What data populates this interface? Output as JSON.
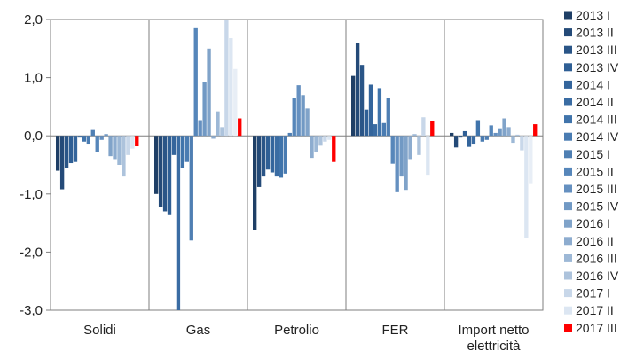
{
  "chart_data": {
    "type": "bar",
    "title": "",
    "xlabel": "",
    "ylabel": "",
    "ylim": [
      -3.0,
      2.0
    ],
    "yticks": [
      -3.0,
      -2.0,
      -1.0,
      0.0,
      1.0,
      2.0
    ],
    "ytick_labels": [
      "-3,0",
      "-2,0",
      "-1,0",
      "0,0",
      "1,0",
      "2,0"
    ],
    "grid": false,
    "legend_position": "right",
    "categories": [
      "Solidi",
      "Gas",
      "Petrolio",
      "FER",
      "Import netto elettricità"
    ],
    "category_label_lines": [
      [
        "Solidi"
      ],
      [
        "Gas"
      ],
      [
        "Petrolio"
      ],
      [
        "FER"
      ],
      [
        "Import netto",
        "elettricità"
      ]
    ],
    "series": [
      {
        "name": "2013 I",
        "color": "#1f3f66",
        "values": [
          -0.6,
          -1.0,
          -1.62,
          1.03,
          0.05
        ]
      },
      {
        "name": "2013 II",
        "color": "#244a78",
        "values": [
          -0.92,
          -1.22,
          -0.88,
          1.6,
          -0.2
        ]
      },
      {
        "name": "2013 III",
        "color": "#2a5587",
        "values": [
          -0.55,
          -1.3,
          -0.7,
          1.22,
          -0.03
        ]
      },
      {
        "name": "2013 IV",
        "color": "#2f5f95",
        "values": [
          -0.47,
          -1.35,
          -0.58,
          0.45,
          0.08
        ]
      },
      {
        "name": "2014 I",
        "color": "#34659c",
        "values": [
          -0.45,
          -0.33,
          -0.63,
          0.88,
          -0.19
        ]
      },
      {
        "name": "2014 II",
        "color": "#3a6ca3",
        "values": [
          -0.03,
          -3.0,
          -0.7,
          0.2,
          -0.15
        ]
      },
      {
        "name": "2014 III",
        "color": "#4074ab",
        "values": [
          -0.1,
          -0.55,
          -0.72,
          0.82,
          0.27
        ]
      },
      {
        "name": "2014 IV",
        "color": "#4a7cb2",
        "values": [
          -0.15,
          -0.45,
          -0.65,
          0.22,
          -0.1
        ]
      },
      {
        "name": "2015 I",
        "color": "#4f7fb3",
        "values": [
          0.1,
          -1.8,
          0.05,
          0.65,
          -0.07
        ]
      },
      {
        "name": "2015 II",
        "color": "#5686ba",
        "values": [
          -0.28,
          1.85,
          0.65,
          -0.48,
          0.18
        ]
      },
      {
        "name": "2015 III",
        "color": "#6590c0",
        "values": [
          -0.07,
          0.27,
          0.87,
          -0.97,
          0.05
        ]
      },
      {
        "name": "2015 IV",
        "color": "#7199c4",
        "values": [
          0.03,
          0.93,
          0.7,
          -0.7,
          0.13
        ]
      },
      {
        "name": "2016 I",
        "color": "#80a3c9",
        "values": [
          -0.35,
          1.5,
          0.47,
          -0.93,
          0.3
        ]
      },
      {
        "name": "2016 II",
        "color": "#8daccf",
        "values": [
          -0.4,
          -0.05,
          -0.38,
          -0.4,
          0.15
        ]
      },
      {
        "name": "2016 III",
        "color": "#9db8d6",
        "values": [
          -0.5,
          0.42,
          -0.28,
          0.03,
          -0.12
        ]
      },
      {
        "name": "2016 IV",
        "color": "#adc3dc",
        "values": [
          -0.7,
          0.15,
          -0.17,
          -0.33,
          0.02
        ]
      },
      {
        "name": "2017 I",
        "color": "#c8d7e9",
        "values": [
          -0.33,
          2.0,
          -0.1,
          0.32,
          -0.25
        ]
      },
      {
        "name": "2017 II",
        "color": "#dce6f2",
        "values": [
          -0.22,
          1.68,
          -0.07,
          -0.67,
          -1.75
        ]
      },
      {
        "name": "2017 III",
        "color": "#ff0000",
        "values": [
          -0.18,
          0.3,
          -0.45,
          0.25,
          0.2
        ]
      }
    ],
    "extra_bars": [
      {
        "category": "Gas",
        "after_series": "2017 II",
        "value": 1.15,
        "color": "#e8eef6"
      },
      {
        "category": "Import netto elettricità",
        "after_series": "2017 II",
        "value": -0.83,
        "color": "#e8eef6"
      }
    ]
  }
}
